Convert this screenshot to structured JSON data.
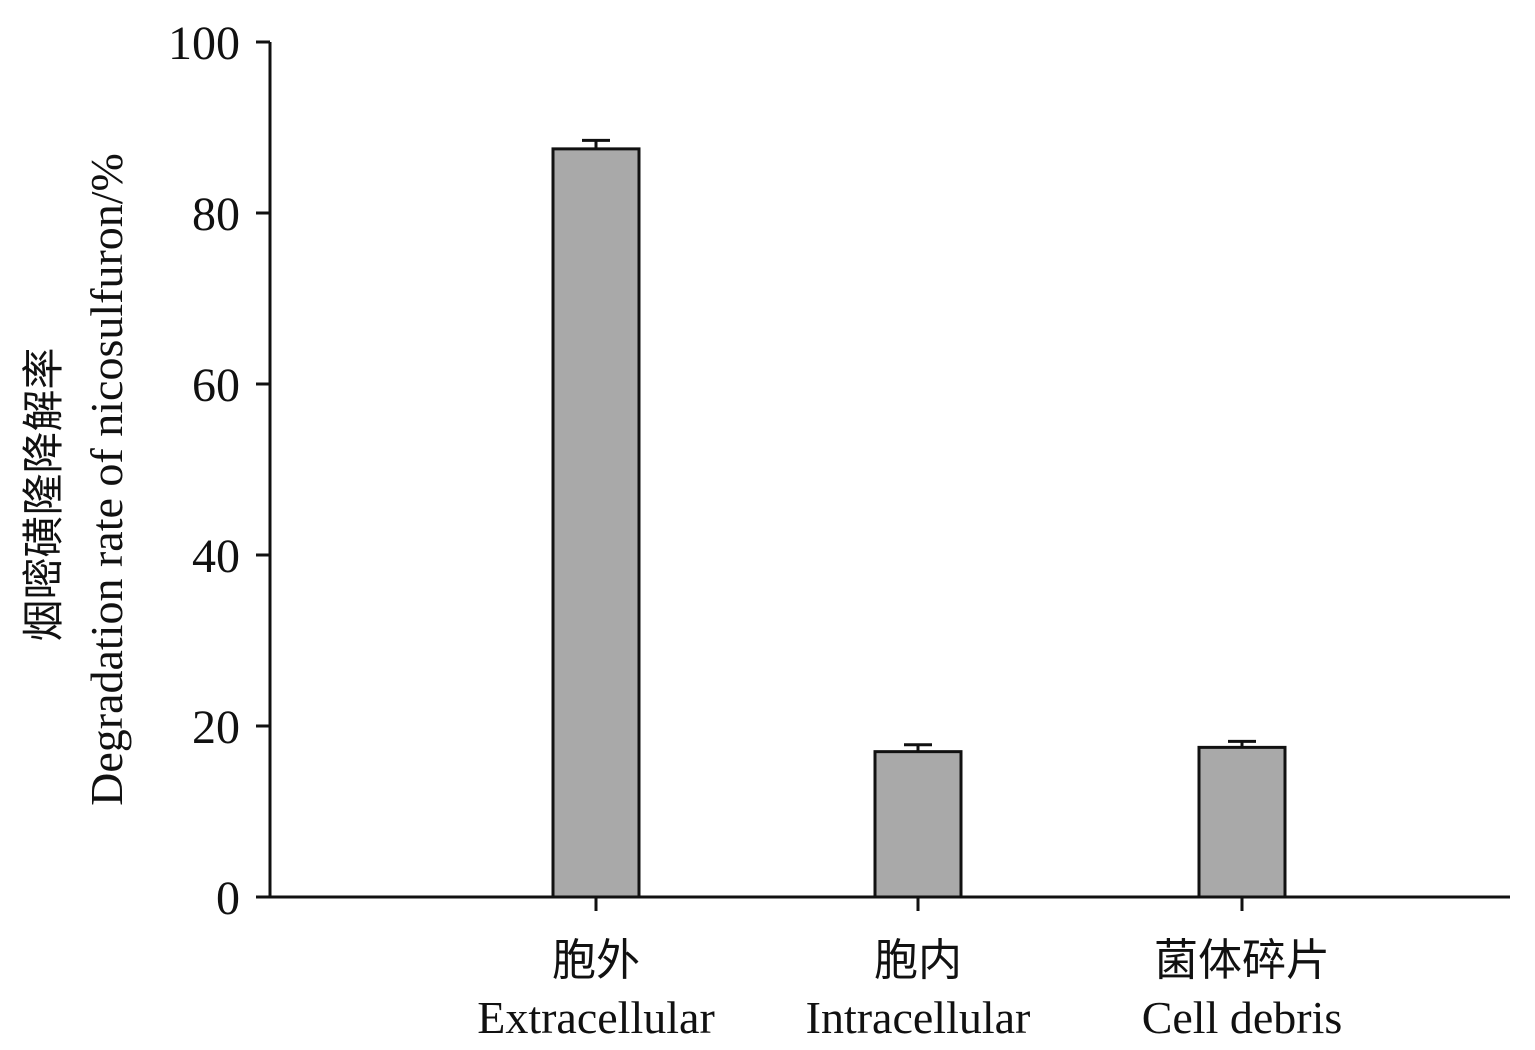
{
  "chart_data": {
    "type": "bar",
    "categories": [
      "胞外\nExtracellular",
      "胞内\nIntracellular",
      "菌体碎片\nCell debris"
    ],
    "category_labels_cn": [
      "胞外",
      "胞内",
      "菌体碎片"
    ],
    "category_labels_en": [
      "Extracellular",
      "Intracellular",
      "Cell debris"
    ],
    "values": [
      87.5,
      17.0,
      17.5
    ],
    "errors": [
      1.0,
      0.8,
      0.7
    ],
    "ylabel_cn": "烟嘧磺隆降解率",
    "ylabel_en": "Degradation rate of nicosulfuron/%",
    "xlabel": "",
    "title": "",
    "ylim": [
      0,
      100
    ],
    "yticks": [
      "0",
      "20",
      "40",
      "60",
      "80",
      "100"
    ],
    "bar_color": "#a9a9a9",
    "edge_color": "#111111",
    "grid": false,
    "legend": "none"
  }
}
